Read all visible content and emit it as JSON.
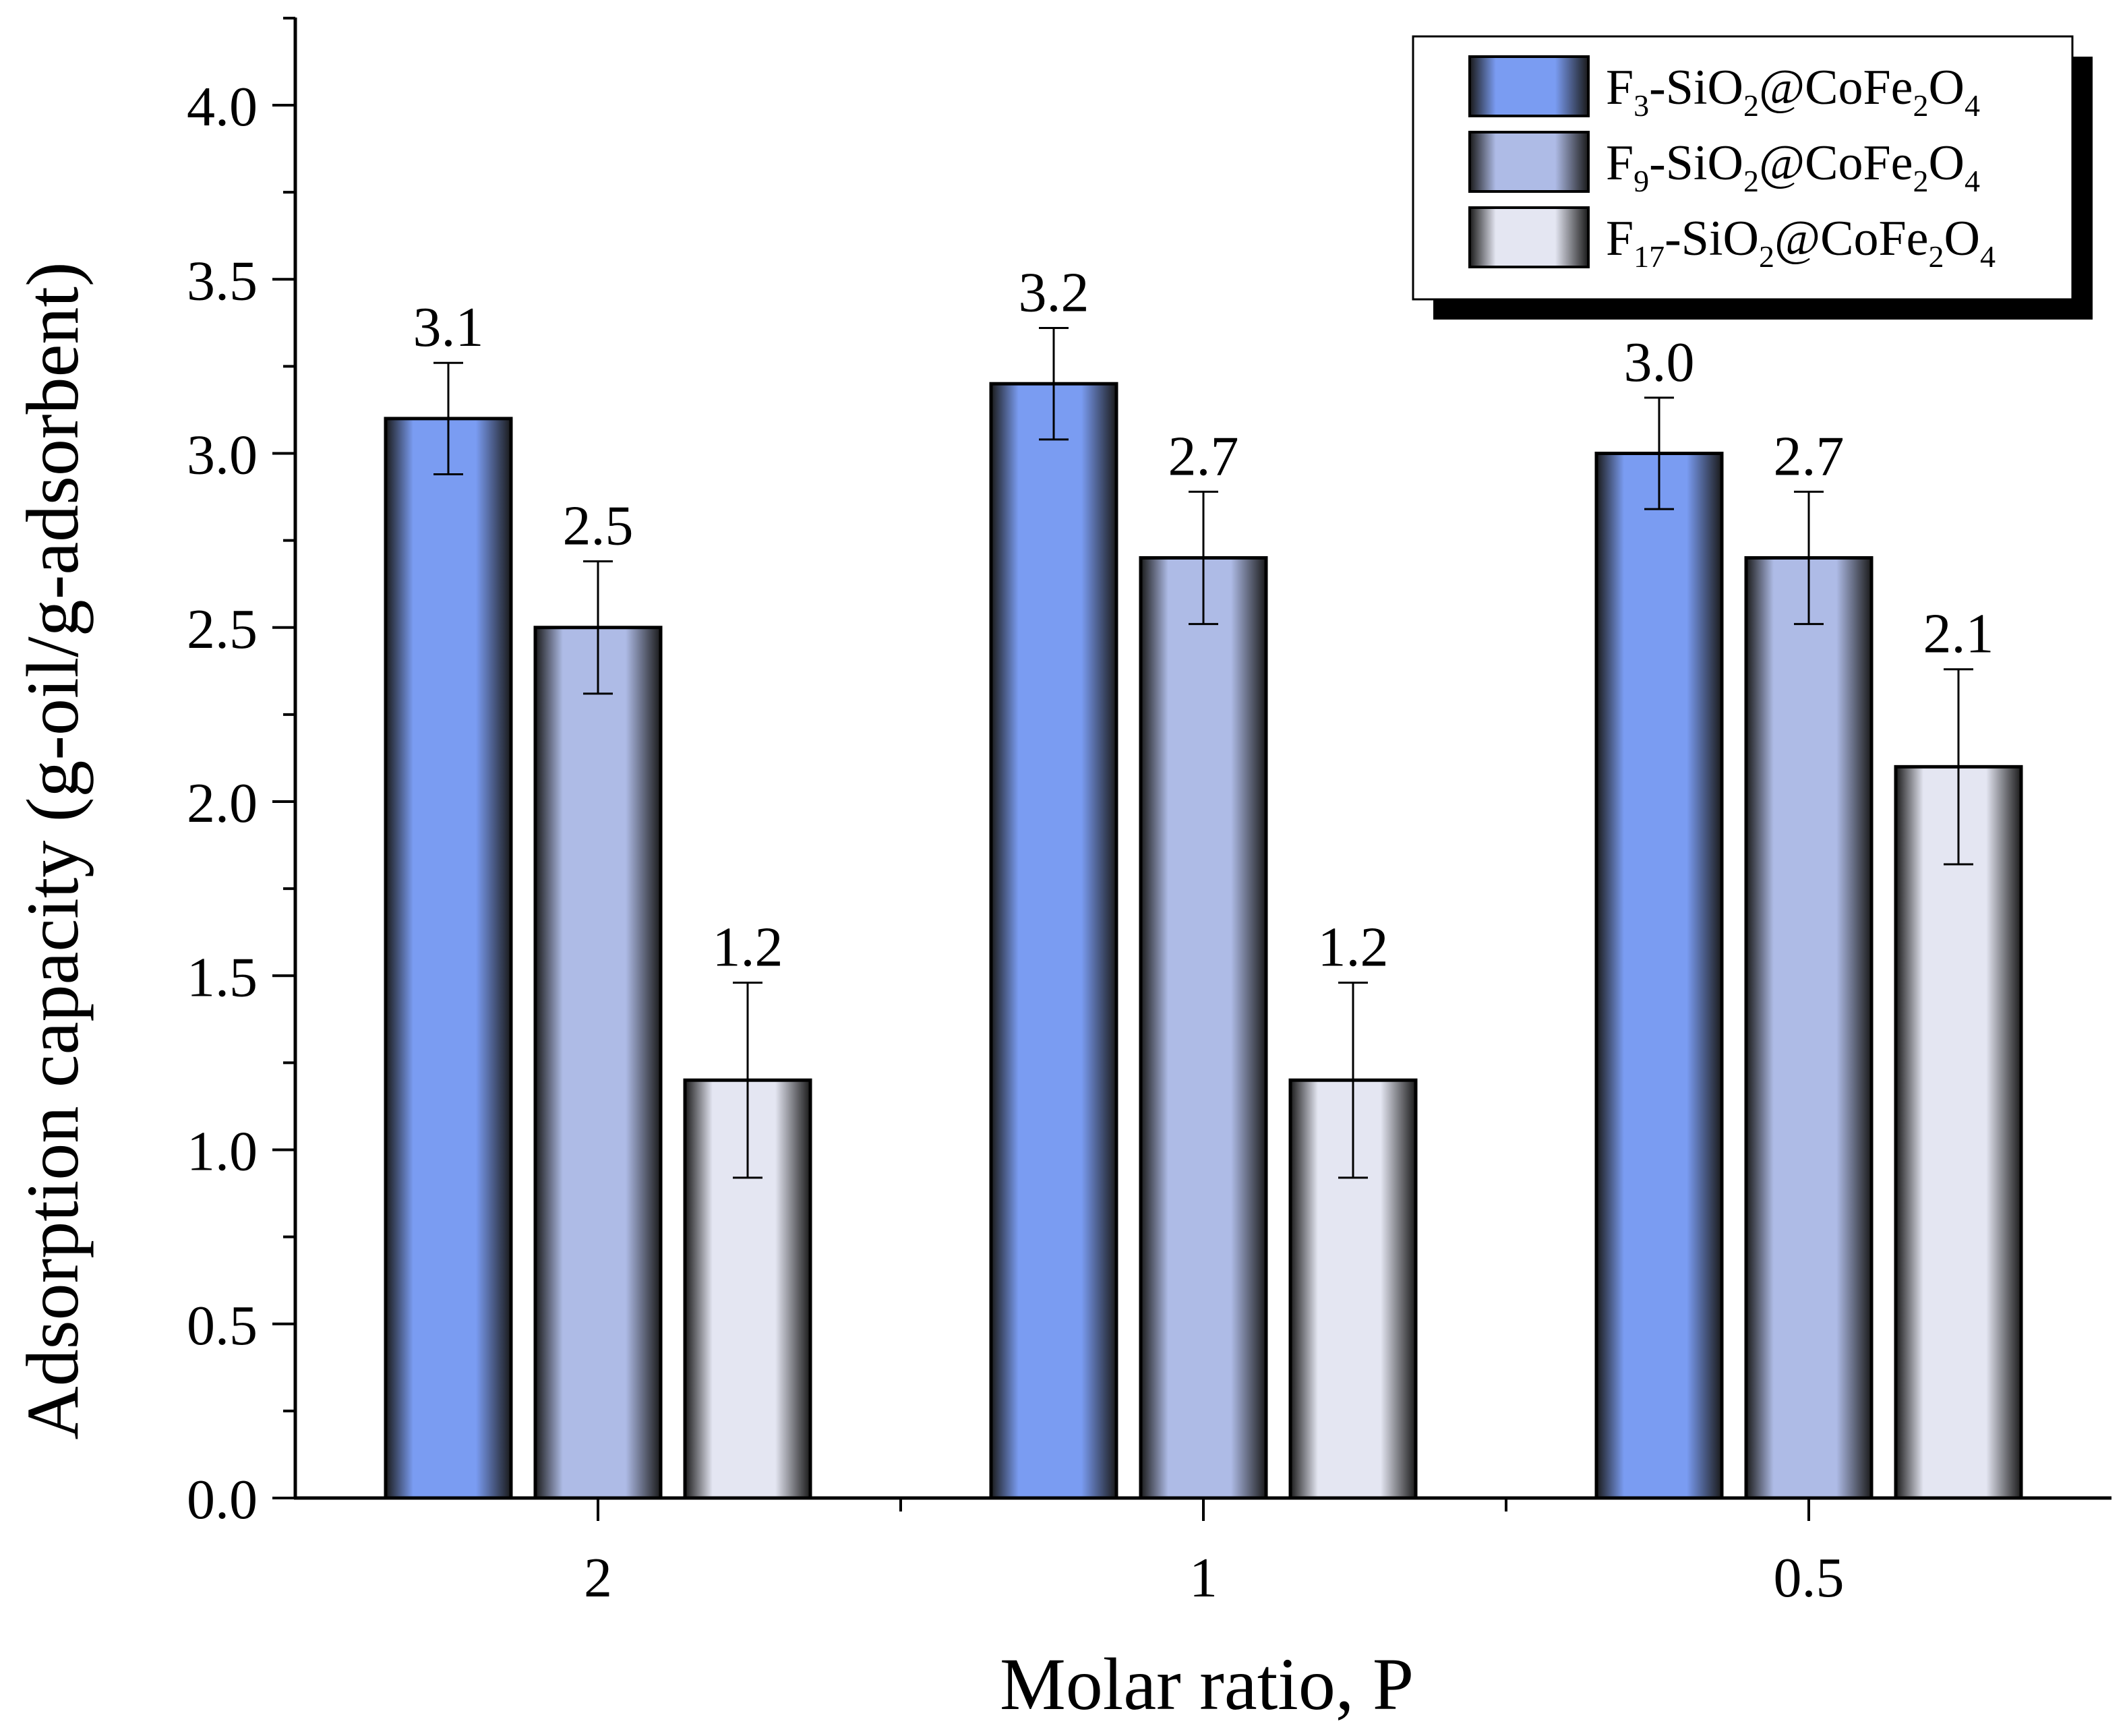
{
  "chart_data": {
    "type": "bar",
    "title": "",
    "xlabel": "Molar ratio, P",
    "ylabel": "Adsorption capacity (g-oil/g-adsorbent)",
    "categories": [
      "2",
      "1",
      "0.5"
    ],
    "ylim": [
      0,
      4.25
    ],
    "yticks": [
      0.0,
      0.5,
      1.0,
      1.5,
      2.0,
      2.5,
      3.0,
      3.5,
      4.0
    ],
    "ytick_labels": [
      "0.0",
      "0.5",
      "1.0",
      "1.5",
      "2.0",
      "2.5",
      "3.0",
      "3.5",
      "4.0"
    ],
    "grid": false,
    "legend_position": "top-right",
    "series": [
      {
        "name": "F3-SiO2@CoFe2O4",
        "legend": [
          {
            "t": "F",
            "sub": false
          },
          {
            "t": "3",
            "sub": true
          },
          {
            "t": "-SiO",
            "sub": false
          },
          {
            "t": "2",
            "sub": true
          },
          {
            "t": "@CoFe",
            "sub": false
          },
          {
            "t": "2",
            "sub": true
          },
          {
            "t": "O",
            "sub": false
          },
          {
            "t": "4",
            "sub": true
          }
        ],
        "values": [
          3.1,
          3.2,
          3.0
        ],
        "errors": [
          0.16,
          0.16,
          0.16
        ],
        "labels": [
          "3.1",
          "3.2",
          "3.0"
        ],
        "color": "#7a9cf2"
      },
      {
        "name": "F9-SiO2@CoFe2O4",
        "legend": [
          {
            "t": "F",
            "sub": false
          },
          {
            "t": "9",
            "sub": true
          },
          {
            "t": "-SiO",
            "sub": false
          },
          {
            "t": "2",
            "sub": true
          },
          {
            "t": "@CoFe",
            "sub": false
          },
          {
            "t": "2",
            "sub": true
          },
          {
            "t": "O",
            "sub": false
          },
          {
            "t": "4",
            "sub": true
          }
        ],
        "values": [
          2.5,
          2.7,
          2.7
        ],
        "errors": [
          0.19,
          0.19,
          0.19
        ],
        "labels": [
          "2.5",
          "2.7",
          "2.7"
        ],
        "color": "#aebbe6"
      },
      {
        "name": "F17-SiO2@CoFe2O4",
        "legend": [
          {
            "t": "F",
            "sub": false
          },
          {
            "t": "17",
            "sub": true
          },
          {
            "t": "-SiO",
            "sub": false
          },
          {
            "t": "2",
            "sub": true
          },
          {
            "t": "@CoFe",
            "sub": false
          },
          {
            "t": "2",
            "sub": true
          },
          {
            "t": "O",
            "sub": false
          },
          {
            "t": "4",
            "sub": true
          }
        ],
        "values": [
          1.2,
          1.2,
          2.1
        ],
        "errors": [
          0.28,
          0.28,
          0.28
        ],
        "labels": [
          "1.2",
          "1.2",
          "2.1"
        ],
        "color": "#e4e6f2"
      }
    ]
  }
}
